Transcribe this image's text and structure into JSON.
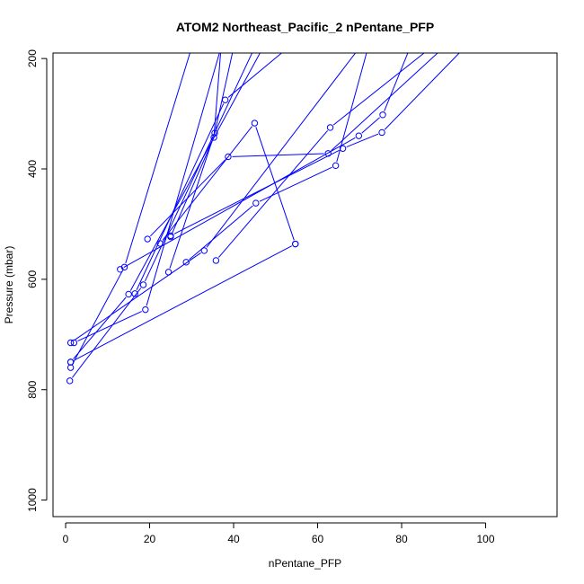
{
  "chart_data": {
    "type": "line",
    "title": "ATOM2 Northeast_Pacific_2 nPentane_PFP",
    "xlabel": "nPentane_PFP",
    "ylabel": "Pressure (mbar)",
    "xlim": [
      -3,
      117
    ],
    "ylim": [
      1030,
      190
    ],
    "y_reversed": true,
    "x_ticks": [
      0,
      20,
      40,
      60,
      80,
      100
    ],
    "y_ticks": [
      200,
      400,
      600,
      800,
      1000
    ],
    "x_tick_labels": [
      "0",
      "20",
      "40",
      "60",
      "80",
      "100"
    ],
    "y_tick_labels": [
      "200",
      "400",
      "600",
      "800",
      "1000"
    ],
    "grid": false,
    "series_color": "#0000ff",
    "series": [
      {
        "x": [
          1.2,
          14.0,
          30.0
        ],
        "y": [
          760,
          578,
          180
        ]
      },
      {
        "x": [
          1.0,
          18.5,
          45.0
        ],
        "y": [
          784,
          610,
          180
        ]
      },
      {
        "x": [
          2.0,
          19.0,
          37.0
        ],
        "y": [
          715,
          655,
          180
        ]
      },
      {
        "x": [
          1.2,
          15.0,
          47.0
        ],
        "y": [
          750,
          627,
          180
        ]
      },
      {
        "x": [
          1.2,
          33.0,
          70.0
        ],
        "y": [
          715,
          548,
          180
        ]
      },
      {
        "x": [
          16.5,
          38.0,
          53.0
        ],
        "y": [
          626,
          275,
          180
        ]
      },
      {
        "x": [
          22.5,
          45.0,
          54.7
        ],
        "y": [
          535,
          317,
          536
        ]
      },
      {
        "x": [
          24.5,
          35.5,
          40.0
        ],
        "y": [
          587,
          335,
          180
        ]
      },
      {
        "x": [
          25.0,
          35.3,
          37.0
        ],
        "y": [
          523,
          343,
          180
        ]
      },
      {
        "x": [
          19.5,
          38.7,
          62.5,
          90.0
        ],
        "y": [
          527,
          378,
          372,
          180
        ]
      },
      {
        "x": [
          28.7,
          45.3,
          64.3,
          72.0
        ],
        "y": [
          569,
          462,
          394,
          180
        ]
      },
      {
        "x": [
          35.8,
          63.0,
          87.0
        ],
        "y": [
          566,
          325,
          180
        ]
      },
      {
        "x": [
          13.0,
          69.8,
          75.5,
          82.0
        ],
        "y": [
          582,
          340,
          302,
          180
        ]
      },
      {
        "x": [
          25.0,
          66.0,
          75.3,
          95.0
        ],
        "y": [
          521,
          363,
          334,
          180
        ]
      },
      {
        "x": [
          1.2,
          54.7
        ],
        "y": [
          750,
          536
        ]
      }
    ]
  }
}
